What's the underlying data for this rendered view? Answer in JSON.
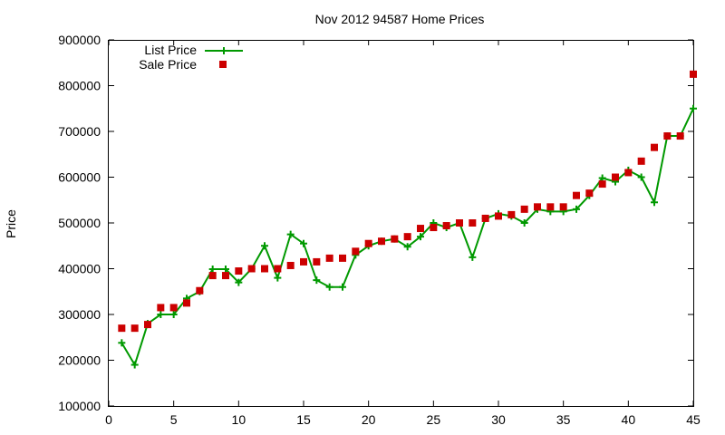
{
  "chart_data": {
    "type": "line",
    "title": "Nov 2012 94587 Home Prices",
    "xlabel": "",
    "ylabel": "Price",
    "xlim": [
      0,
      45
    ],
    "ylim": [
      100000,
      900000
    ],
    "x_ticks": [
      "0",
      "5",
      "10",
      "15",
      "20",
      "25",
      "30",
      "35",
      "40",
      "45"
    ],
    "y_ticks": [
      "100000",
      "200000",
      "300000",
      "400000",
      "500000",
      "600000",
      "700000",
      "800000",
      "900000"
    ],
    "grid": false,
    "legend": "top-left",
    "series": [
      {
        "name": "List Price",
        "style": "line+cross",
        "color": "#009900",
        "points": [
          [
            1,
            238000
          ],
          [
            2,
            190000
          ],
          [
            3,
            280000
          ],
          [
            4,
            300000
          ],
          [
            5,
            300000
          ],
          [
            6,
            335000
          ],
          [
            7,
            350000
          ],
          [
            8,
            399000
          ],
          [
            9,
            399000
          ],
          [
            10,
            370000
          ],
          [
            11,
            400000
          ],
          [
            12,
            450000
          ],
          [
            13,
            380000
          ],
          [
            14,
            475000
          ],
          [
            15,
            455000
          ],
          [
            16,
            375000
          ],
          [
            17,
            360000
          ],
          [
            18,
            360000
          ],
          [
            19,
            430000
          ],
          [
            20,
            450000
          ],
          [
            21,
            460000
          ],
          [
            22,
            465000
          ],
          [
            23,
            448000
          ],
          [
            24,
            470000
          ],
          [
            25,
            500000
          ],
          [
            26,
            490000
          ],
          [
            27,
            500000
          ],
          [
            28,
            425000
          ],
          [
            29,
            510000
          ],
          [
            30,
            520000
          ],
          [
            31,
            515000
          ],
          [
            32,
            500000
          ],
          [
            33,
            530000
          ],
          [
            34,
            525000
          ],
          [
            35,
            525000
          ],
          [
            36,
            530000
          ],
          [
            37,
            560000
          ],
          [
            38,
            598000
          ],
          [
            39,
            590000
          ],
          [
            40,
            615000
          ],
          [
            41,
            600000
          ],
          [
            42,
            545000
          ],
          [
            43,
            690000
          ],
          [
            44,
            690000
          ],
          [
            45,
            750000
          ]
        ]
      },
      {
        "name": "Sale Price",
        "style": "square",
        "color": "#cc0000",
        "points": [
          [
            1,
            270000
          ],
          [
            2,
            270000
          ],
          [
            3,
            278000
          ],
          [
            4,
            315000
          ],
          [
            5,
            315000
          ],
          [
            6,
            325000
          ],
          [
            7,
            352000
          ],
          [
            8,
            385000
          ],
          [
            9,
            385000
          ],
          [
            10,
            395000
          ],
          [
            11,
            400000
          ],
          [
            12,
            400000
          ],
          [
            13,
            400000
          ],
          [
            14,
            407000
          ],
          [
            15,
            415000
          ],
          [
            16,
            415000
          ],
          [
            17,
            423000
          ],
          [
            18,
            423000
          ],
          [
            19,
            438000
          ],
          [
            20,
            455000
          ],
          [
            21,
            460000
          ],
          [
            22,
            465000
          ],
          [
            23,
            470000
          ],
          [
            24,
            488000
          ],
          [
            25,
            490000
          ],
          [
            26,
            494000
          ],
          [
            27,
            500000
          ],
          [
            28,
            500000
          ],
          [
            29,
            510000
          ],
          [
            30,
            515000
          ],
          [
            31,
            518000
          ],
          [
            32,
            530000
          ],
          [
            33,
            535000
          ],
          [
            34,
            535000
          ],
          [
            35,
            535000
          ],
          [
            36,
            560000
          ],
          [
            37,
            565000
          ],
          [
            38,
            585000
          ],
          [
            39,
            600000
          ],
          [
            40,
            610000
          ],
          [
            41,
            635000
          ],
          [
            42,
            665000
          ],
          [
            43,
            690000
          ],
          [
            44,
            690000
          ],
          [
            45,
            825000
          ]
        ]
      }
    ]
  }
}
